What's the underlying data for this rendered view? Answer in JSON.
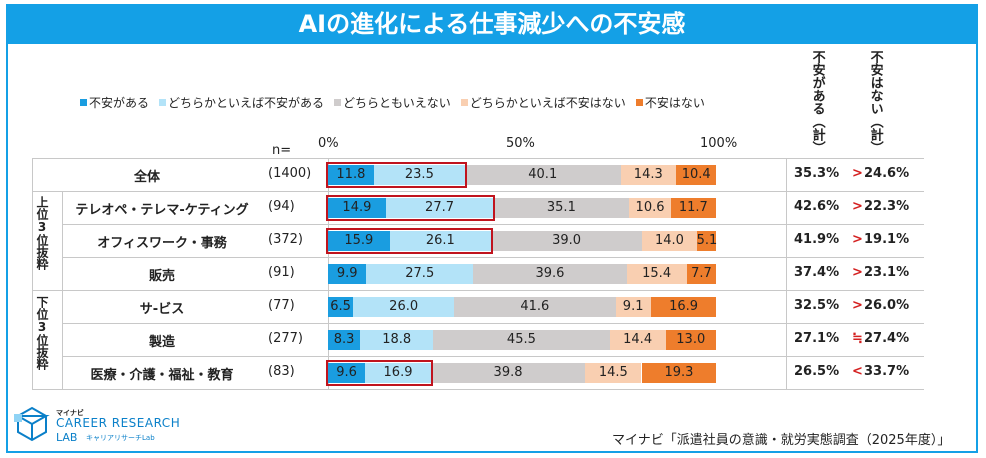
{
  "title": "AIの進化による仕事減少への不安感",
  "legend": [
    {
      "label": "不安がある",
      "color": "#1a9de0"
    },
    {
      "label": "どちらかといえば不安がある",
      "color": "#b3e3f8"
    },
    {
      "label": "どちらともいえない",
      "color": "#cfcccc"
    },
    {
      "label": "どちらかといえば不安はない",
      "color": "#f9cfb1"
    },
    {
      "label": "不安はない",
      "color": "#ee7d2c"
    }
  ],
  "col_headers": {
    "anxious_total": "不安がある（計）",
    "not_anxious_total": "不安はない（計）"
  },
  "n_label": "n=",
  "groups": {
    "top": "上位3位抜粋",
    "bottom": "下位3位抜粋"
  },
  "chart_data": {
    "type": "bar",
    "orientation": "horizontal",
    "stacked": true,
    "title": "AIの進化による仕事減少への不安感",
    "xlim": [
      0,
      100
    ],
    "x_ticks": [
      "0%",
      "50%",
      "100%"
    ],
    "categories": [
      "全体",
      "テレオペ・テレマ-ケティング",
      "オフィスワーク・事務",
      "販売",
      "サ-ビス",
      "製造",
      "医療・介護・福祉・教育"
    ],
    "n": [
      "(1400)",
      "(94)",
      "(372)",
      "(91)",
      "(77)",
      "(277)",
      "(83)"
    ],
    "series": [
      {
        "name": "不安がある",
        "values": [
          11.8,
          14.9,
          15.9,
          9.9,
          6.5,
          8.3,
          9.6
        ]
      },
      {
        "name": "どちらかといえば不安がある",
        "values": [
          23.5,
          27.7,
          26.1,
          27.5,
          26.0,
          18.8,
          16.9
        ]
      },
      {
        "name": "どちらともいえない",
        "values": [
          40.1,
          35.1,
          39.0,
          39.6,
          41.6,
          45.5,
          39.8
        ]
      },
      {
        "name": "どちらかといえば不安はない",
        "values": [
          14.3,
          10.6,
          14.0,
          15.4,
          9.1,
          14.4,
          14.5
        ]
      },
      {
        "name": "不安はない",
        "values": [
          10.4,
          11.7,
          5.1,
          7.7,
          16.9,
          13.0,
          19.3
        ]
      }
    ],
    "anxious_total": [
      "35.3%",
      "42.6%",
      "41.9%",
      "37.4%",
      "32.5%",
      "27.1%",
      "26.5%"
    ],
    "comparison": [
      ">",
      ">",
      ">",
      ">",
      ">",
      "≒",
      "<"
    ],
    "not_anxious_total": [
      "24.6%",
      "22.3%",
      "19.1%",
      "23.1%",
      "26.0%",
      "27.4%",
      "33.7%"
    ],
    "highlighted_rows": [
      0,
      1,
      2,
      6
    ]
  },
  "logo": {
    "brand": "マイナビ",
    "main": "CAREER RESEARCH",
    "sub": "LAB",
    "sub_jp": "キャリアリサーチLab"
  },
  "source": "マイナビ「派遣社員の意識・就労実態調査（2025年度）」"
}
